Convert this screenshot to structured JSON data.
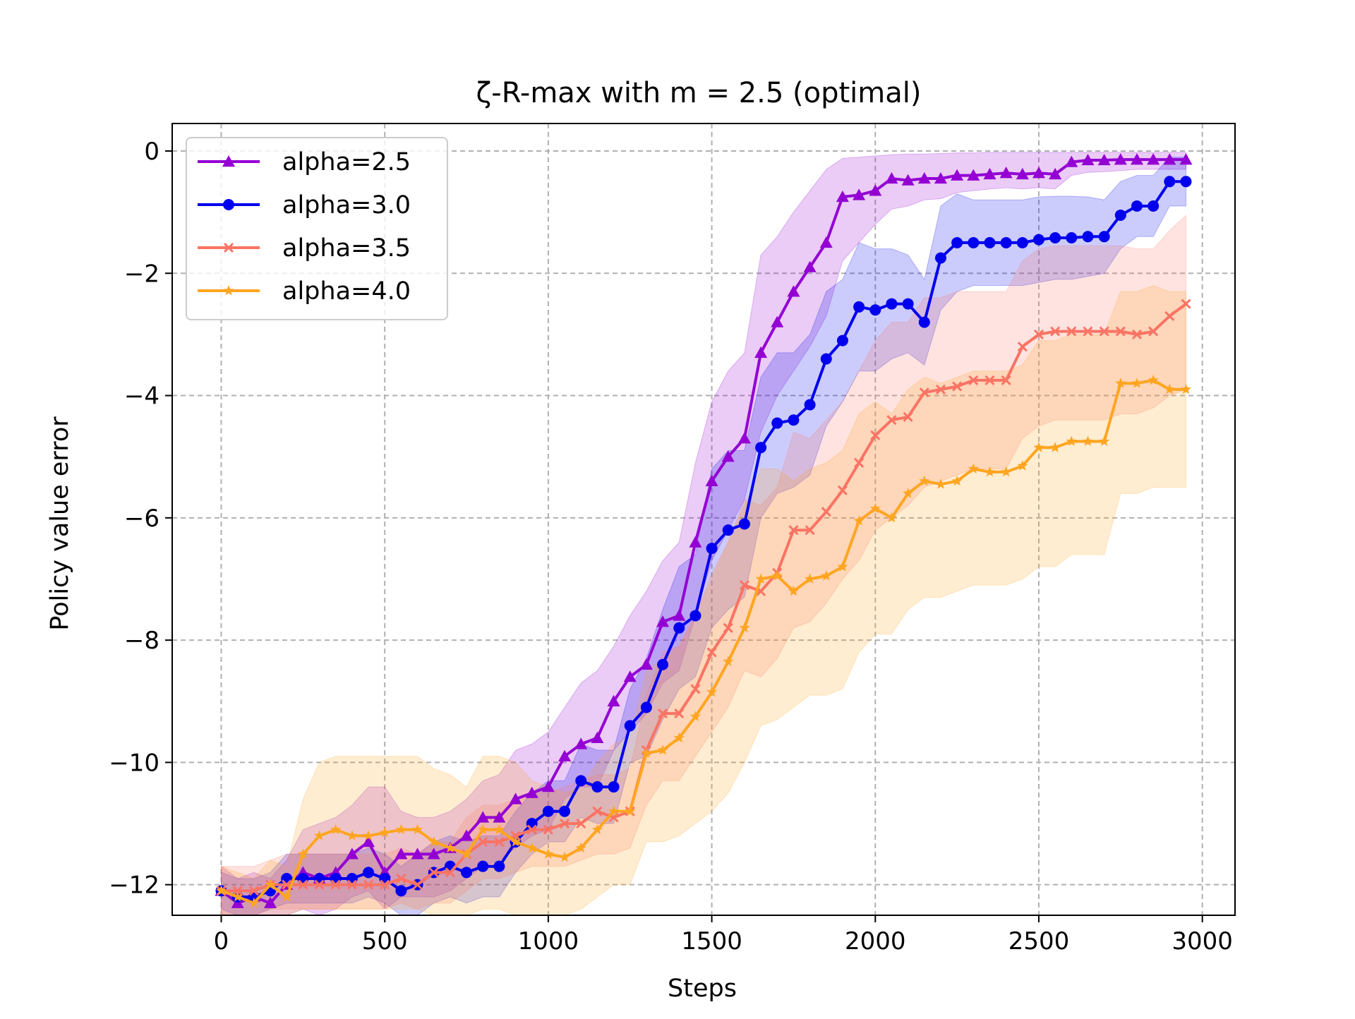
{
  "chart_data": {
    "type": "line",
    "title": "ζ-R-max with m = 2.5 (optimal)",
    "xlabel": "Steps",
    "ylabel": "Policy value error",
    "xlim": [
      -150,
      3100
    ],
    "ylim": [
      -12.5,
      0.45
    ],
    "x_ticks": [
      0,
      500,
      1000,
      1500,
      2000,
      2500,
      3000
    ],
    "y_ticks": [
      0,
      -2,
      -4,
      -6,
      -8,
      -10,
      -12
    ],
    "x_tick_labels": [
      "0",
      "500",
      "1000",
      "1500",
      "2000",
      "2500",
      "3000"
    ],
    "y_tick_labels": [
      "0",
      "−2",
      "−4",
      "−6",
      "−8",
      "−10",
      "−12"
    ],
    "grid": true,
    "legend_position": "upper-left",
    "x": [
      0,
      50,
      100,
      150,
      200,
      250,
      300,
      350,
      400,
      450,
      500,
      550,
      600,
      650,
      700,
      750,
      800,
      850,
      900,
      950,
      1000,
      1050,
      1100,
      1150,
      1200,
      1250,
      1300,
      1350,
      1400,
      1450,
      1500,
      1550,
      1600,
      1650,
      1700,
      1750,
      1800,
      1850,
      1900,
      1950,
      2000,
      2050,
      2100,
      2150,
      2200,
      2250,
      2300,
      2350,
      2400,
      2450,
      2500,
      2550,
      2600,
      2650,
      2700,
      2750,
      2800,
      2850,
      2900,
      2950
    ],
    "series": [
      {
        "name": "alpha=2.5",
        "color": "#9400d3",
        "marker": "triangle",
        "values": [
          -12.1,
          -12.3,
          -12.2,
          -12.3,
          -12.0,
          -11.8,
          -11.9,
          -11.8,
          -11.5,
          -11.3,
          -11.8,
          -11.5,
          -11.5,
          -11.5,
          -11.4,
          -11.2,
          -10.9,
          -10.9,
          -10.6,
          -10.5,
          -10.4,
          -9.9,
          -9.7,
          -9.6,
          -9.0,
          -8.6,
          -8.4,
          -7.7,
          -7.6,
          -6.4,
          -5.4,
          -5.0,
          -4.7,
          -3.3,
          -2.8,
          -2.3,
          -1.9,
          -1.5,
          -0.75,
          -0.72,
          -0.65,
          -0.45,
          -0.48,
          -0.45,
          -0.45,
          -0.4,
          -0.4,
          -0.38,
          -0.36,
          -0.38,
          -0.36,
          -0.38,
          -0.18,
          -0.15,
          -0.15,
          -0.14,
          -0.14,
          -0.14,
          -0.14,
          -0.14
        ],
        "lower": [
          -12.5,
          -12.5,
          -12.5,
          -12.5,
          -12.5,
          -12.4,
          -12.5,
          -12.4,
          -12.2,
          -12.1,
          -12.4,
          -12.2,
          -12.2,
          -12.2,
          -12.1,
          -11.9,
          -11.7,
          -11.6,
          -11.4,
          -11.2,
          -11.1,
          -10.6,
          -10.4,
          -10.4,
          -9.8,
          -9.5,
          -9.2,
          -8.7,
          -8.5,
          -7.6,
          -6.7,
          -6.2,
          -5.7,
          -4.6,
          -4.0,
          -3.6,
          -3.2,
          -2.7,
          -1.8,
          -1.5,
          -1.2,
          -0.95,
          -0.9,
          -0.8,
          -0.78,
          -0.68,
          -0.65,
          -0.62,
          -0.6,
          -0.62,
          -0.6,
          -0.62,
          -0.4,
          -0.35,
          -0.34,
          -0.32,
          -0.3,
          -0.3,
          -0.3,
          -0.3
        ],
        "upper": [
          -11.7,
          -11.9,
          -11.8,
          -11.9,
          -11.6,
          -11.1,
          -11.0,
          -10.9,
          -10.7,
          -10.4,
          -10.4,
          -10.8,
          -10.9,
          -10.9,
          -10.8,
          -10.6,
          -10.3,
          -10.2,
          -9.8,
          -9.7,
          -9.5,
          -9.1,
          -8.7,
          -8.5,
          -8.1,
          -7.6,
          -7.2,
          -6.7,
          -6.4,
          -5.1,
          -4.1,
          -3.6,
          -3.3,
          -1.7,
          -1.4,
          -1.0,
          -0.65,
          -0.3,
          -0.12,
          -0.1,
          -0.08,
          -0.06,
          -0.05,
          -0.05,
          -0.04,
          -0.03,
          -0.03,
          -0.02,
          -0.02,
          -0.02,
          -0.02,
          -0.02,
          -0.02,
          -0.02,
          -0.02,
          -0.02,
          -0.02,
          -0.02,
          -0.02,
          -0.02
        ]
      },
      {
        "name": "alpha=3.0",
        "color": "#0000ee",
        "marker": "circle",
        "values": [
          -12.1,
          -12.2,
          -12.2,
          -12.1,
          -11.9,
          -11.9,
          -11.9,
          -11.9,
          -11.9,
          -11.8,
          -11.9,
          -12.1,
          -12.0,
          -11.8,
          -11.7,
          -11.8,
          -11.7,
          -11.7,
          -11.3,
          -11.0,
          -10.8,
          -10.8,
          -10.3,
          -10.4,
          -10.4,
          -9.4,
          -9.1,
          -8.4,
          -7.8,
          -7.6,
          -6.5,
          -6.2,
          -6.1,
          -4.85,
          -4.45,
          -4.4,
          -4.15,
          -3.4,
          -3.1,
          -2.55,
          -2.6,
          -2.5,
          -2.5,
          -2.8,
          -1.75,
          -1.5,
          -1.5,
          -1.5,
          -1.5,
          -1.5,
          -1.45,
          -1.42,
          -1.42,
          -1.4,
          -1.4,
          -1.05,
          -0.9,
          -0.9,
          -0.5,
          -0.5
        ],
        "lower": [
          -12.4,
          -12.5,
          -12.5,
          -12.4,
          -12.3,
          -12.3,
          -12.3,
          -12.3,
          -12.3,
          -12.2,
          -12.3,
          -12.5,
          -12.5,
          -12.3,
          -12.2,
          -12.3,
          -12.2,
          -12.2,
          -11.8,
          -11.5,
          -11.3,
          -11.3,
          -10.9,
          -11.0,
          -11.0,
          -10.0,
          -9.9,
          -9.3,
          -8.8,
          -8.6,
          -7.8,
          -7.5,
          -7.3,
          -6.0,
          -5.6,
          -5.5,
          -5.3,
          -4.5,
          -4.1,
          -3.6,
          -3.6,
          -3.4,
          -3.3,
          -3.5,
          -2.6,
          -2.3,
          -2.2,
          -2.2,
          -2.2,
          -2.2,
          -2.15,
          -2.1,
          -2.1,
          -2.05,
          -2.0,
          -1.6,
          -1.4,
          -1.4,
          -0.9,
          -0.9
        ],
        "upper": [
          -11.8,
          -11.9,
          -11.9,
          -11.8,
          -11.5,
          -11.5,
          -11.5,
          -11.5,
          -11.5,
          -11.4,
          -11.5,
          -11.7,
          -11.5,
          -11.3,
          -11.2,
          -11.3,
          -11.2,
          -11.2,
          -10.8,
          -10.5,
          -10.3,
          -10.3,
          -9.7,
          -9.8,
          -9.8,
          -8.8,
          -8.3,
          -7.5,
          -6.8,
          -6.6,
          -5.2,
          -4.9,
          -4.9,
          -3.7,
          -3.3,
          -3.3,
          -3.0,
          -2.3,
          -2.1,
          -1.5,
          -1.6,
          -1.6,
          -1.7,
          -2.1,
          -0.9,
          -0.7,
          -0.8,
          -0.8,
          -0.8,
          -0.8,
          -0.75,
          -0.74,
          -0.74,
          -0.75,
          -0.8,
          -0.5,
          -0.4,
          -0.4,
          -0.1,
          -0.1
        ]
      },
      {
        "name": "alpha=3.5",
        "color": "#fa7364",
        "marker": "x",
        "values": [
          -12.1,
          -12.1,
          -12.1,
          -12.0,
          -12.0,
          -12.0,
          -12.0,
          -12.0,
          -12.0,
          -12.0,
          -12.0,
          -11.9,
          -12.0,
          -11.8,
          -11.8,
          -11.5,
          -11.3,
          -11.3,
          -11.2,
          -11.1,
          -11.1,
          -11.0,
          -11.0,
          -10.8,
          -10.9,
          -10.8,
          -9.8,
          -9.2,
          -9.2,
          -8.8,
          -8.2,
          -7.8,
          -7.1,
          -7.2,
          -6.9,
          -6.2,
          -6.2,
          -5.9,
          -5.55,
          -5.1,
          -4.65,
          -4.4,
          -4.35,
          -3.95,
          -3.9,
          -3.85,
          -3.75,
          -3.75,
          -3.75,
          -3.2,
          -3.0,
          -2.95,
          -2.95,
          -2.95,
          -2.95,
          -2.95,
          -3.0,
          -2.95,
          -2.7,
          -2.5
        ],
        "lower": [
          -12.5,
          -12.5,
          -12.5,
          -12.4,
          -12.4,
          -12.4,
          -12.4,
          -12.4,
          -12.4,
          -12.4,
          -12.4,
          -12.3,
          -12.4,
          -12.3,
          -12.3,
          -12.1,
          -11.9,
          -11.9,
          -11.8,
          -11.7,
          -11.7,
          -11.7,
          -11.6,
          -11.5,
          -11.5,
          -11.4,
          -10.7,
          -10.3,
          -10.3,
          -9.9,
          -9.5,
          -9.1,
          -8.5,
          -8.6,
          -8.3,
          -7.8,
          -7.7,
          -7.4,
          -7.0,
          -6.7,
          -6.2,
          -6.0,
          -5.8,
          -5.5,
          -5.4,
          -5.3,
          -5.2,
          -5.2,
          -5.2,
          -4.7,
          -4.5,
          -4.4,
          -4.4,
          -4.4,
          -4.4,
          -4.3,
          -4.3,
          -4.2,
          -4.0,
          -3.9
        ],
        "upper": [
          -11.7,
          -11.7,
          -11.7,
          -11.6,
          -11.5,
          -11.5,
          -11.5,
          -11.5,
          -11.5,
          -11.5,
          -11.5,
          -11.4,
          -11.5,
          -11.3,
          -11.3,
          -10.9,
          -10.7,
          -10.7,
          -10.6,
          -10.5,
          -10.5,
          -10.4,
          -10.3,
          -10.2,
          -10.2,
          -10.1,
          -8.9,
          -8.2,
          -8.1,
          -7.6,
          -6.9,
          -6.4,
          -5.7,
          -5.8,
          -5.5,
          -4.6,
          -4.7,
          -4.4,
          -4.1,
          -3.6,
          -3.1,
          -2.8,
          -2.8,
          -2.4,
          -2.4,
          -2.3,
          -2.3,
          -2.3,
          -2.3,
          -1.8,
          -1.6,
          -1.55,
          -1.55,
          -1.55,
          -1.55,
          -1.55,
          -1.6,
          -1.6,
          -1.3,
          -1.05
        ]
      },
      {
        "name": "alpha=4.0",
        "color": "#ffa520",
        "marker": "star",
        "values": [
          -12.1,
          -12.2,
          -12.3,
          -12.0,
          -12.2,
          -11.5,
          -11.2,
          -11.1,
          -11.2,
          -11.2,
          -11.15,
          -11.1,
          -11.1,
          -11.3,
          -11.4,
          -11.5,
          -11.1,
          -11.1,
          -11.3,
          -11.4,
          -11.5,
          -11.55,
          -11.4,
          -11.1,
          -10.8,
          -10.8,
          -9.85,
          -9.8,
          -9.6,
          -9.25,
          -8.85,
          -8.35,
          -7.8,
          -7.0,
          -6.95,
          -7.2,
          -7.0,
          -6.95,
          -6.8,
          -6.05,
          -5.85,
          -6.0,
          -5.6,
          -5.4,
          -5.45,
          -5.4,
          -5.2,
          -5.25,
          -5.25,
          -5.15,
          -4.85,
          -4.85,
          -4.75,
          -4.75,
          -4.75,
          -3.8,
          -3.8,
          -3.75,
          -3.9,
          -3.9
        ],
        "lower": [
          -12.5,
          -12.5,
          -12.5,
          -12.5,
          -12.5,
          -12.4,
          -12.4,
          -12.4,
          -12.4,
          -12.4,
          -12.4,
          -12.4,
          -12.4,
          -12.5,
          -12.5,
          -12.5,
          -12.4,
          -12.4,
          -12.5,
          -12.5,
          -12.5,
          -12.5,
          -12.4,
          -12.2,
          -12.0,
          -12.0,
          -11.3,
          -11.3,
          -11.2,
          -11.0,
          -10.8,
          -10.5,
          -10.0,
          -9.4,
          -9.3,
          -9.1,
          -8.9,
          -8.9,
          -8.8,
          -8.2,
          -7.9,
          -7.9,
          -7.5,
          -7.3,
          -7.3,
          -7.2,
          -7.1,
          -7.1,
          -7.1,
          -7.0,
          -6.8,
          -6.8,
          -6.6,
          -6.6,
          -6.6,
          -5.6,
          -5.6,
          -5.5,
          -5.5,
          -5.5
        ],
        "upper": [
          -11.7,
          -11.8,
          -11.9,
          -11.6,
          -11.7,
          -10.6,
          -10.0,
          -9.9,
          -9.9,
          -9.9,
          -9.9,
          -9.9,
          -9.9,
          -10.1,
          -10.2,
          -10.4,
          -9.9,
          -9.9,
          -10.0,
          -10.3,
          -10.4,
          -10.5,
          -10.4,
          -10.0,
          -9.7,
          -9.6,
          -8.5,
          -8.3,
          -8.1,
          -7.6,
          -7.0,
          -6.4,
          -5.8,
          -5.2,
          -5.2,
          -5.4,
          -5.2,
          -5.1,
          -4.9,
          -4.3,
          -4.1,
          -4.3,
          -3.9,
          -3.7,
          -3.8,
          -3.7,
          -3.6,
          -3.6,
          -3.6,
          -3.5,
          -3.1,
          -3.1,
          -3.0,
          -3.0,
          -3.0,
          -2.3,
          -2.3,
          -2.2,
          -2.3,
          -2.3
        ]
      }
    ]
  }
}
